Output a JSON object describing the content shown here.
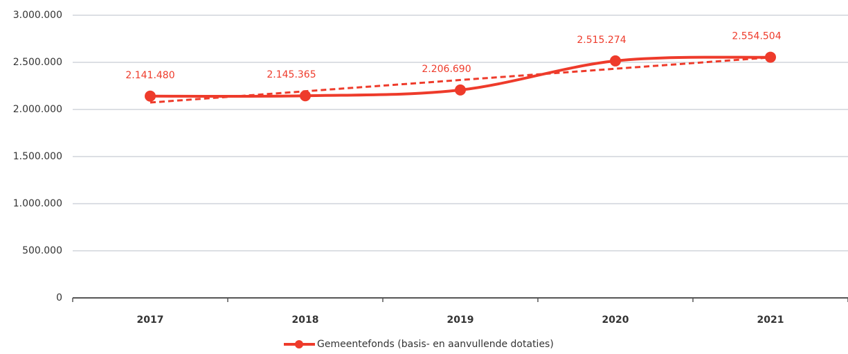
{
  "chart_data": {
    "type": "line",
    "categories": [
      "2017",
      "2018",
      "2019",
      "2020",
      "2021"
    ],
    "series": [
      {
        "name": "Gemeentefonds (basis- en aanvullende dotaties)",
        "color": "#ee3b2b",
        "values": [
          2141480,
          2145365,
          2206690,
          2515274,
          2554504
        ],
        "value_labels": [
          "2.141.480",
          "2.145.365",
          "2.206.690",
          "2.515.274",
          "2.554.504"
        ]
      }
    ],
    "ylim": [
      0,
      3000000
    ],
    "yticks": [
      0,
      {
        "value": 500000,
        "label": "500.000"
      },
      {
        "value": 1000000,
        "label": "1.000.000"
      },
      {
        "value": 1500000,
        "label": "1.500.000"
      },
      {
        "value": 2000000,
        "label": "2.000.000"
      },
      {
        "value": 2500000,
        "label": "2.500.000"
      },
      {
        "value": 3000000,
        "label": "3.000.000"
      }
    ],
    "grid": true,
    "smooth": true,
    "trendline": true,
    "legend": "bottom"
  }
}
